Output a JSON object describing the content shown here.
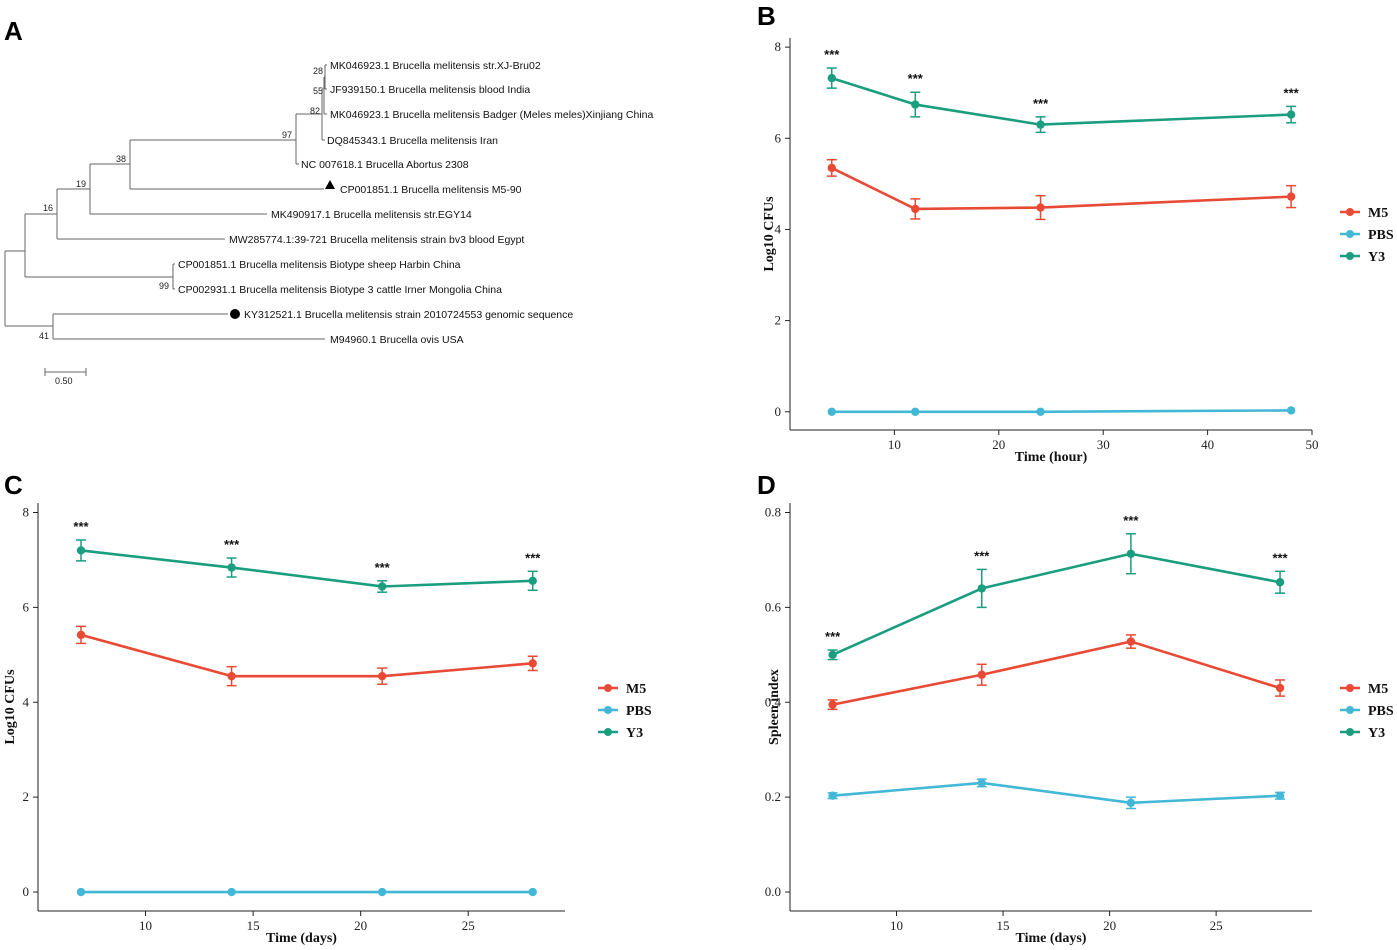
{
  "panel_labels": {
    "a": "A",
    "b": "B",
    "c": "C",
    "d": "D"
  },
  "colors": {
    "M5": "#e84a35",
    "PBS": "#43b8d6",
    "Y3": "#1b9e80"
  },
  "tree": {
    "leaves": [
      "MK046923.1 Brucella melitensis str.XJ-Bru02",
      "JF939150.1 Brucella melitensis blood India",
      "MK046923.1 Brucella melitensis Badger (Meles meles)Xinjiang China",
      "DQ845343.1 Brucella melitensis Iran",
      "NC 007618.1 Brucella Abortus 2308",
      "CP001851.1 Brucella melitensis M5-90",
      "MK490917.1 Brucella melitensis str.EGY14",
      "MW285774.1:39-721 Brucella melitensis strain bv3 blood Egypt",
      "CP001851.1 Brucella melitensis Biotype sheep Harbin China",
      "CP002931.1 Brucella melitensis Biotype 3 cattle Irner Mongolia China",
      "KY312521.1 Brucella melitensis strain 2010724553 genomic sequence",
      "M94960.1 Brucella ovis USA"
    ],
    "bootstrap": [
      "28",
      "55",
      "82",
      "97",
      "38",
      "19",
      "16",
      "99",
      "41"
    ],
    "scale_label": "0.50"
  },
  "chart_data": [
    {
      "panel": "B",
      "type": "line",
      "xlabel": "Time (hour)",
      "ylabel": "Log10 CFUs",
      "xlim": [
        0,
        50
      ],
      "ylim": [
        -0.4,
        8.2
      ],
      "xticks": [
        10,
        20,
        30,
        40,
        50
      ],
      "yticks": [
        0,
        2,
        4,
        6,
        8
      ],
      "x": [
        4,
        12,
        24,
        48
      ],
      "series": [
        {
          "name": "M5",
          "values": [
            5.35,
            4.45,
            4.48,
            4.72
          ],
          "errors": [
            0.18,
            0.22,
            0.26,
            0.24
          ]
        },
        {
          "name": "PBS",
          "values": [
            0.0,
            0.0,
            0.0,
            0.03
          ],
          "errors": [
            0.0,
            0.0,
            0.0,
            0.0
          ]
        },
        {
          "name": "Y3",
          "values": [
            7.32,
            6.74,
            6.3,
            6.52
          ],
          "errors": [
            0.22,
            0.27,
            0.17,
            0.18
          ]
        }
      ],
      "significance": [
        "***",
        "***",
        "***",
        "***"
      ],
      "legend": [
        "M5",
        "PBS",
        "Y3"
      ]
    },
    {
      "panel": "C",
      "type": "line",
      "xlabel": "Time (days)",
      "ylabel": "Log10 CFUs",
      "xlim": [
        5,
        29.5
      ],
      "ylim": [
        -0.4,
        8.2
      ],
      "xticks": [
        10,
        15,
        20,
        25
      ],
      "yticks": [
        0,
        2,
        4,
        6,
        8
      ],
      "x": [
        7,
        14,
        21,
        28
      ],
      "series": [
        {
          "name": "M5",
          "values": [
            5.42,
            4.55,
            4.55,
            4.82
          ],
          "errors": [
            0.18,
            0.2,
            0.17,
            0.15
          ]
        },
        {
          "name": "PBS",
          "values": [
            0.0,
            0.0,
            0.0,
            0.0
          ],
          "errors": [
            0.0,
            0.0,
            0.0,
            0.0
          ]
        },
        {
          "name": "Y3",
          "values": [
            7.2,
            6.84,
            6.44,
            6.56
          ],
          "errors": [
            0.22,
            0.2,
            0.12,
            0.2
          ]
        }
      ],
      "significance": [
        "***",
        "***",
        "***",
        "***"
      ],
      "legend": [
        "M5",
        "PBS",
        "Y3"
      ]
    },
    {
      "panel": "D",
      "type": "line",
      "xlabel": "Time (days)",
      "ylabel": "Spleen index",
      "xlim": [
        5,
        29.5
      ],
      "ylim": [
        -0.04,
        0.82
      ],
      "xticks": [
        10,
        15,
        20,
        25
      ],
      "yticks": [
        0.0,
        0.2,
        0.4,
        0.6,
        0.8
      ],
      "ytick_labels": [
        "0.0",
        "0.2",
        "0.4",
        "0.6",
        "0.8"
      ],
      "x": [
        7,
        14,
        21,
        28
      ],
      "series": [
        {
          "name": "M5",
          "values": [
            0.395,
            0.458,
            0.528,
            0.43
          ],
          "errors": [
            0.01,
            0.022,
            0.014,
            0.017
          ]
        },
        {
          "name": "PBS",
          "values": [
            0.203,
            0.23,
            0.188,
            0.203
          ],
          "errors": [
            0.006,
            0.008,
            0.012,
            0.007
          ]
        },
        {
          "name": "Y3",
          "values": [
            0.5,
            0.64,
            0.713,
            0.653
          ],
          "errors": [
            0.01,
            0.04,
            0.042,
            0.023
          ]
        }
      ],
      "significance": [
        "***",
        "***",
        "***",
        "***"
      ],
      "legend": [
        "M5",
        "PBS",
        "Y3"
      ]
    }
  ]
}
